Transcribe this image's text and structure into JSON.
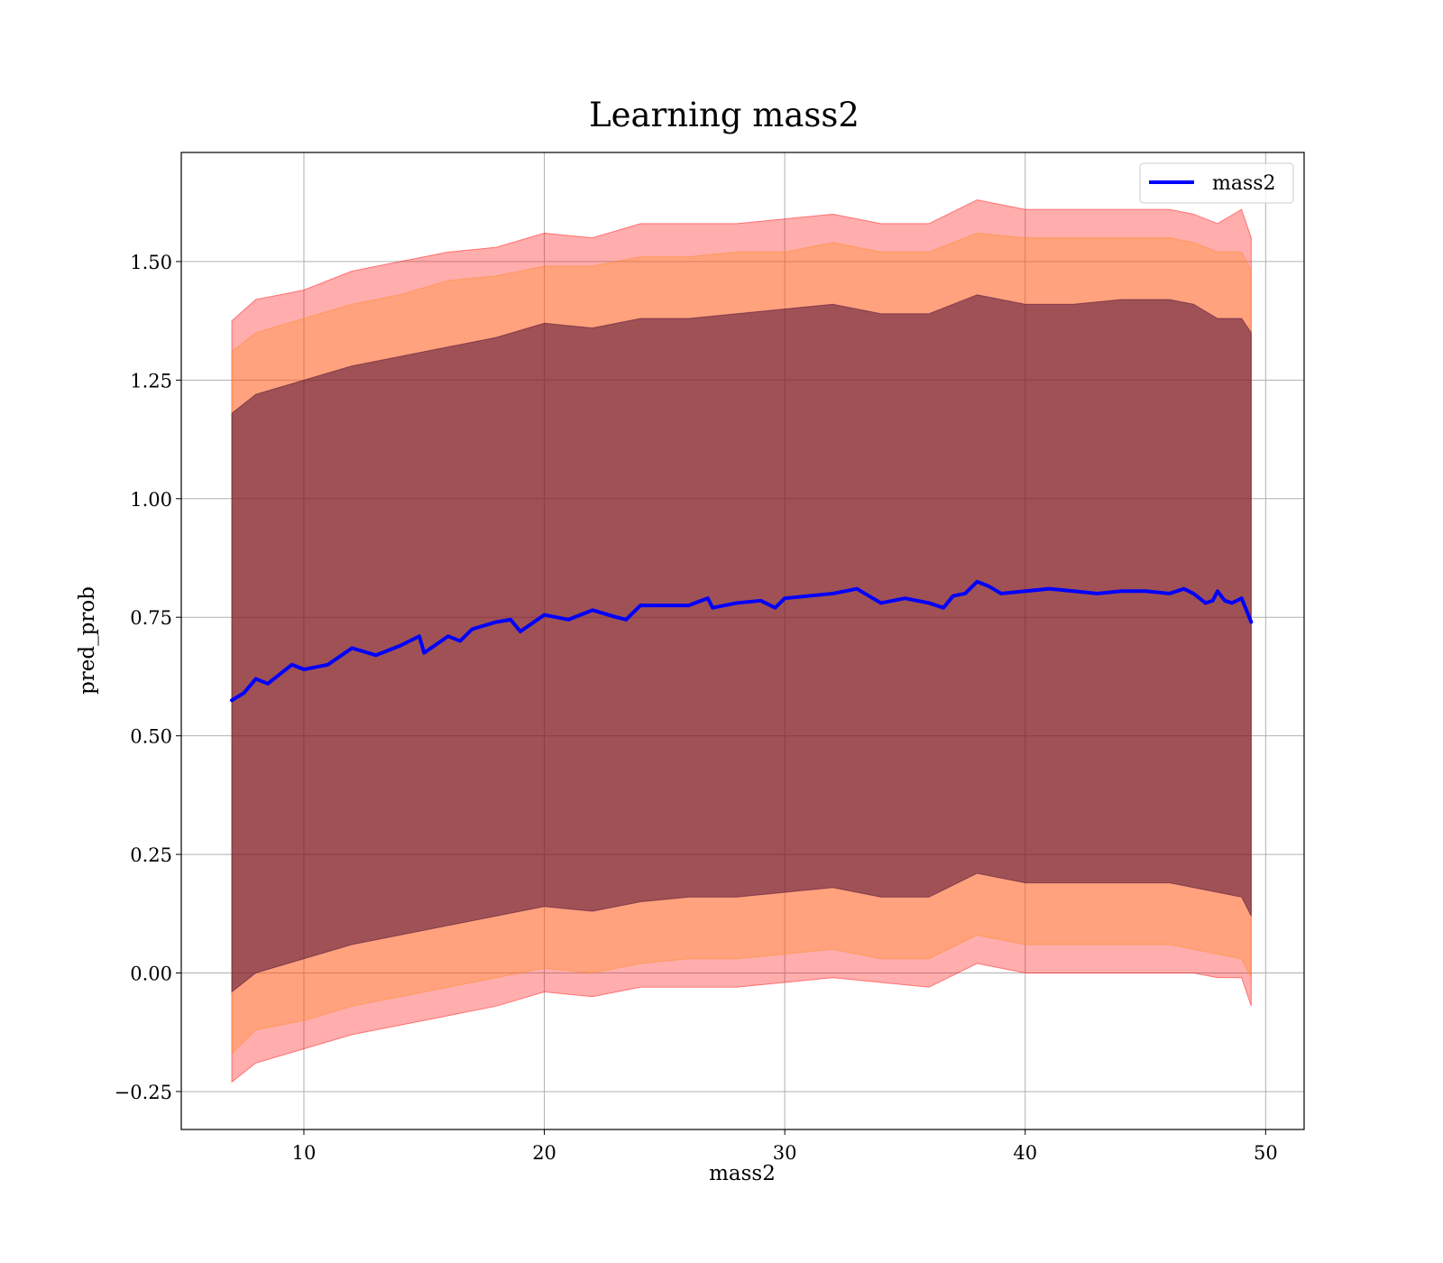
{
  "chart_data": {
    "type": "line",
    "title": "Learning mass2",
    "xlabel": "mass2",
    "ylabel": "pred_prob",
    "xlim": [
      4.9,
      51.6
    ],
    "ylim": [
      -0.33,
      1.73
    ],
    "xticks": [
      10,
      20,
      30,
      40,
      50
    ],
    "yticks": [
      -0.25,
      0.0,
      0.25,
      0.5,
      0.75,
      1.0,
      1.25,
      1.5
    ],
    "ytick_labels": [
      "−0.25",
      "0.00",
      "0.25",
      "0.50",
      "0.75",
      "1.00",
      "1.25",
      "1.50"
    ],
    "grid": true,
    "legend": {
      "position": "upper-right",
      "entries": [
        "mass2"
      ]
    },
    "series": [
      {
        "name": "mass2",
        "color": "#0000ff",
        "x": [
          7.0,
          7.5,
          8.0,
          8.5,
          9.0,
          9.5,
          10.0,
          11.0,
          12.0,
          13.0,
          14.0,
          14.8,
          15.0,
          16.0,
          16.5,
          17.0,
          18.0,
          18.6,
          19.0,
          20.0,
          21.0,
          22.0,
          23.0,
          23.4,
          24.0,
          25.0,
          26.0,
          26.8,
          27.0,
          28.0,
          29.0,
          29.6,
          30.0,
          31.0,
          32.0,
          33.0,
          34.0,
          35.0,
          36.0,
          36.6,
          37.0,
          37.5,
          38.0,
          38.5,
          39.0,
          40.0,
          41.0,
          42.0,
          43.0,
          44.0,
          45.0,
          46.0,
          46.6,
          47.0,
          47.5,
          47.8,
          48.0,
          48.3,
          48.6,
          49.0,
          49.4
        ],
        "y": [
          0.575,
          0.59,
          0.62,
          0.61,
          0.63,
          0.65,
          0.64,
          0.65,
          0.685,
          0.67,
          0.69,
          0.71,
          0.675,
          0.71,
          0.7,
          0.725,
          0.74,
          0.745,
          0.72,
          0.755,
          0.745,
          0.765,
          0.75,
          0.745,
          0.775,
          0.775,
          0.775,
          0.79,
          0.77,
          0.78,
          0.785,
          0.77,
          0.79,
          0.795,
          0.8,
          0.81,
          0.78,
          0.79,
          0.78,
          0.77,
          0.795,
          0.8,
          0.825,
          0.815,
          0.8,
          0.805,
          0.81,
          0.805,
          0.8,
          0.805,
          0.805,
          0.8,
          0.81,
          0.8,
          0.78,
          0.785,
          0.805,
          0.785,
          0.78,
          0.79,
          0.74
        ]
      }
    ],
    "bands": [
      {
        "color": "#ff0000",
        "opacity": 0.32,
        "x": [
          7.0,
          8.0,
          10.0,
          12.0,
          14.0,
          16.0,
          18.0,
          20.0,
          22.0,
          24.0,
          26.0,
          28.0,
          30.0,
          32.0,
          34.0,
          36.0,
          38.0,
          40.0,
          42.0,
          44.0,
          46.0,
          47.0,
          48.0,
          49.0,
          49.4
        ],
        "upper": [
          1.375,
          1.42,
          1.44,
          1.48,
          1.5,
          1.52,
          1.53,
          1.56,
          1.55,
          1.58,
          1.58,
          1.58,
          1.59,
          1.6,
          1.58,
          1.58,
          1.63,
          1.61,
          1.61,
          1.61,
          1.61,
          1.6,
          1.58,
          1.61,
          1.55
        ],
        "lower": [
          -0.23,
          -0.19,
          -0.16,
          -0.13,
          -0.11,
          -0.09,
          -0.07,
          -0.04,
          -0.05,
          -0.03,
          -0.03,
          -0.03,
          -0.02,
          -0.01,
          -0.02,
          -0.03,
          0.02,
          0.0,
          0.0,
          0.0,
          0.0,
          0.0,
          -0.01,
          -0.01,
          -0.07
        ]
      },
      {
        "color": "#ff8c1a",
        "opacity": 0.32,
        "x": [
          7.0,
          8.0,
          10.0,
          12.0,
          14.0,
          16.0,
          18.0,
          20.0,
          22.0,
          24.0,
          26.0,
          28.0,
          30.0,
          32.0,
          34.0,
          36.0,
          38.0,
          40.0,
          42.0,
          44.0,
          46.0,
          47.0,
          48.0,
          49.0,
          49.4
        ],
        "upper": [
          1.31,
          1.35,
          1.38,
          1.41,
          1.43,
          1.46,
          1.47,
          1.49,
          1.49,
          1.51,
          1.51,
          1.52,
          1.52,
          1.54,
          1.52,
          1.52,
          1.56,
          1.55,
          1.55,
          1.55,
          1.55,
          1.54,
          1.52,
          1.52,
          1.48
        ],
        "lower": [
          -0.17,
          -0.12,
          -0.1,
          -0.07,
          -0.05,
          -0.03,
          -0.01,
          0.01,
          0.0,
          0.02,
          0.03,
          0.03,
          0.04,
          0.05,
          0.03,
          0.03,
          0.08,
          0.06,
          0.06,
          0.06,
          0.06,
          0.05,
          0.04,
          0.03,
          -0.01
        ]
      },
      {
        "color": "#400030",
        "opacity": 0.5,
        "x": [
          7.0,
          8.0,
          10.0,
          12.0,
          14.0,
          16.0,
          18.0,
          20.0,
          22.0,
          24.0,
          26.0,
          28.0,
          30.0,
          32.0,
          34.0,
          36.0,
          38.0,
          40.0,
          42.0,
          44.0,
          46.0,
          47.0,
          48.0,
          49.0,
          49.4
        ],
        "upper": [
          1.18,
          1.22,
          1.25,
          1.28,
          1.3,
          1.32,
          1.34,
          1.37,
          1.36,
          1.38,
          1.38,
          1.39,
          1.4,
          1.41,
          1.39,
          1.39,
          1.43,
          1.41,
          1.41,
          1.42,
          1.42,
          1.41,
          1.38,
          1.38,
          1.35
        ],
        "lower": [
          -0.04,
          0.0,
          0.03,
          0.06,
          0.08,
          0.1,
          0.12,
          0.14,
          0.13,
          0.15,
          0.16,
          0.16,
          0.17,
          0.18,
          0.16,
          0.16,
          0.21,
          0.19,
          0.19,
          0.19,
          0.19,
          0.18,
          0.17,
          0.16,
          0.12
        ]
      }
    ]
  }
}
